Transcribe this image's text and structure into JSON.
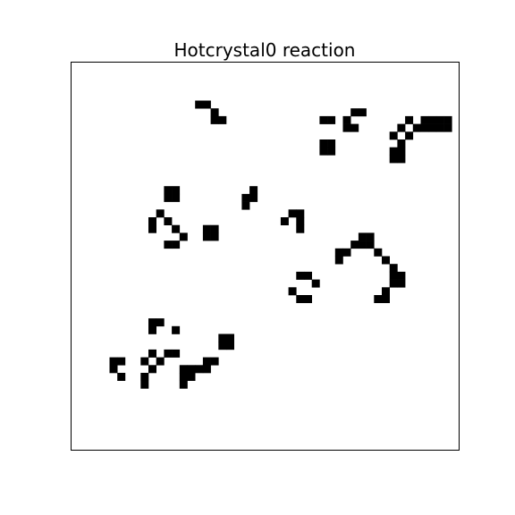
{
  "figure": {
    "title": "Hotcrystal0 reaction"
  },
  "grid": {
    "cols": 50,
    "rows": 50,
    "cell_on_color": "#000000",
    "cell_off_color": "#ffffff",
    "frame_color": "#000000",
    "live_cells": [
      [
        16,
        5
      ],
      [
        17,
        5
      ],
      [
        18,
        6
      ],
      [
        18,
        7
      ],
      [
        19,
        7
      ],
      [
        36,
        6
      ],
      [
        37,
        6
      ],
      [
        35,
        7
      ],
      [
        32,
        7
      ],
      [
        33,
        7
      ],
      [
        43,
        7
      ],
      [
        45,
        7
      ],
      [
        46,
        7
      ],
      [
        47,
        7
      ],
      [
        48,
        7
      ],
      [
        35,
        8
      ],
      [
        36,
        8
      ],
      [
        42,
        8
      ],
      [
        44,
        8
      ],
      [
        45,
        8
      ],
      [
        46,
        8
      ],
      [
        47,
        8
      ],
      [
        48,
        8
      ],
      [
        43,
        9
      ],
      [
        41,
        9
      ],
      [
        32,
        10
      ],
      [
        33,
        10
      ],
      [
        42,
        10
      ],
      [
        32,
        11
      ],
      [
        33,
        11
      ],
      [
        41,
        11
      ],
      [
        42,
        11
      ],
      [
        41,
        12
      ],
      [
        42,
        12
      ],
      [
        12,
        16
      ],
      [
        13,
        16
      ],
      [
        12,
        17
      ],
      [
        13,
        17
      ],
      [
        23,
        16
      ],
      [
        22,
        17
      ],
      [
        23,
        17
      ],
      [
        22,
        18
      ],
      [
        11,
        19
      ],
      [
        28,
        19
      ],
      [
        29,
        19
      ],
      [
        10,
        20
      ],
      [
        12,
        20
      ],
      [
        27,
        20
      ],
      [
        29,
        20
      ],
      [
        10,
        21
      ],
      [
        13,
        21
      ],
      [
        17,
        21
      ],
      [
        18,
        21
      ],
      [
        29,
        21
      ],
      [
        17,
        22
      ],
      [
        18,
        22
      ],
      [
        14,
        22
      ],
      [
        13,
        23
      ],
      [
        12,
        23
      ],
      [
        37,
        22
      ],
      [
        38,
        22
      ],
      [
        36,
        23
      ],
      [
        37,
        23
      ],
      [
        38,
        23
      ],
      [
        35,
        24
      ],
      [
        34,
        24
      ],
      [
        39,
        24
      ],
      [
        34,
        25
      ],
      [
        40,
        25
      ],
      [
        41,
        26
      ],
      [
        29,
        27
      ],
      [
        30,
        27
      ],
      [
        31,
        28
      ],
      [
        41,
        27
      ],
      [
        42,
        27
      ],
      [
        41,
        28
      ],
      [
        42,
        28
      ],
      [
        40,
        29
      ],
      [
        39,
        30
      ],
      [
        40,
        30
      ],
      [
        28,
        29
      ],
      [
        29,
        30
      ],
      [
        30,
        30
      ],
      [
        10,
        33
      ],
      [
        11,
        33
      ],
      [
        10,
        34
      ],
      [
        13,
        34
      ],
      [
        19,
        35
      ],
      [
        20,
        35
      ],
      [
        19,
        36
      ],
      [
        20,
        36
      ],
      [
        12,
        37
      ],
      [
        13,
        37
      ],
      [
        10,
        37
      ],
      [
        5,
        38
      ],
      [
        6,
        38
      ],
      [
        9,
        38
      ],
      [
        11,
        38
      ],
      [
        17,
        38
      ],
      [
        18,
        38
      ],
      [
        5,
        39
      ],
      [
        10,
        39
      ],
      [
        14,
        39
      ],
      [
        15,
        39
      ],
      [
        16,
        39
      ],
      [
        17,
        39
      ],
      [
        6,
        40
      ],
      [
        9,
        40
      ],
      [
        14,
        40
      ],
      [
        15,
        40
      ],
      [
        9,
        41
      ],
      [
        14,
        41
      ]
    ]
  }
}
